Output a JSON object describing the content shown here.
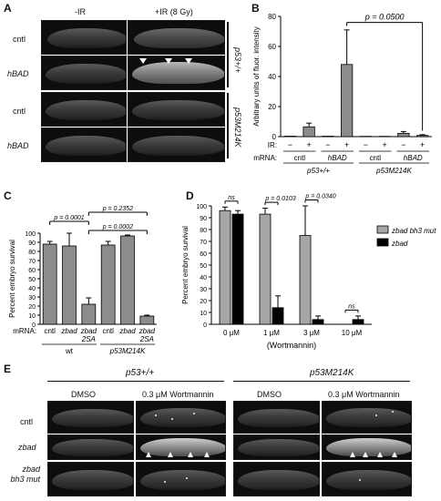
{
  "panels": {
    "A": {
      "label": "A",
      "col_headers": [
        "-IR",
        "+IR (8 Gy)"
      ],
      "rows": [
        "cntl",
        "hBAD",
        "cntl",
        "hBAD"
      ],
      "genotypes": [
        "p53+/+",
        "p53M214K"
      ]
    },
    "B": {
      "label": "B"
    },
    "C": {
      "label": "C"
    },
    "D": {
      "label": "D"
    },
    "E": {
      "label": "E",
      "genotype_headers": [
        "p53+/+",
        "p53M214K"
      ],
      "col_headers": [
        "DMSO",
        "0.3 μM Wortmannin",
        "DMSO",
        "0.3 μM Wortmannin"
      ],
      "rows": [
        "cntl",
        "zbad",
        "zbad\nbh3 mut"
      ]
    }
  },
  "chart_data": [
    {
      "panel": "B",
      "type": "bar",
      "ylabel": "Arbitrary units of fluor. intensity",
      "ylim": [
        0,
        80
      ],
      "yticks": [
        0,
        20,
        40,
        60,
        80
      ],
      "ir_row_label": "IR:",
      "mrna_row_label": "mRNA:",
      "ir": [
        "−",
        "+",
        "−",
        "+",
        "−",
        "+",
        "−",
        "+"
      ],
      "mrna_groups": [
        "cntl",
        "hBAD",
        "cntl",
        "hBAD"
      ],
      "genotype_groups": [
        "p53+/+",
        "p53M214K"
      ],
      "values": [
        0.3,
        6.5,
        0.3,
        48,
        0.2,
        0.2,
        2.2,
        0.8
      ],
      "errors": [
        0,
        2.5,
        0,
        23,
        0,
        0,
        1.2,
        0.5
      ],
      "annotation": "p = 0.0500"
    },
    {
      "panel": "C",
      "type": "bar",
      "ylabel": "Percent embryo survival",
      "ylim": [
        0,
        100
      ],
      "yticks": [
        0,
        10,
        20,
        30,
        40,
        50,
        60,
        70,
        80,
        90,
        100
      ],
      "mrna_row_label": "mRNA:",
      "categories": [
        "cntl",
        "zbad",
        "zbad 2SA",
        "cntl",
        "zbad",
        "zbad 2SA"
      ],
      "genotype_groups": [
        "wt",
        "p53M214K"
      ],
      "values": [
        88,
        86,
        22,
        87,
        97,
        9
      ],
      "errors": [
        3,
        14,
        7,
        4,
        1,
        1
      ],
      "annotations": [
        "p = 0.0001",
        "p = 0.2352",
        "p = 0.0002"
      ]
    },
    {
      "panel": "D",
      "type": "bar",
      "ylabel": "Percent embryo survival",
      "xlabel": "(Wortmannin)",
      "ylim": [
        0,
        100
      ],
      "yticks": [
        0,
        10,
        20,
        30,
        40,
        50,
        60,
        70,
        80,
        90,
        100
      ],
      "categories": [
        "0 μM",
        "1 μM",
        "3 μM",
        "10 μM"
      ],
      "series": [
        {
          "name": "zbad bh3 mut",
          "color": "#a6a6a6",
          "values": [
            96,
            93,
            75,
            0
          ],
          "errors": [
            3,
            5,
            25,
            0
          ]
        },
        {
          "name": "zbad",
          "color": "#000000",
          "values": [
            93,
            14,
            4,
            4
          ],
          "errors": [
            3,
            10,
            3,
            3
          ]
        }
      ],
      "annotations": [
        "ns",
        "p = 0.0103",
        "p = 0.0340",
        "ns"
      ]
    }
  ]
}
